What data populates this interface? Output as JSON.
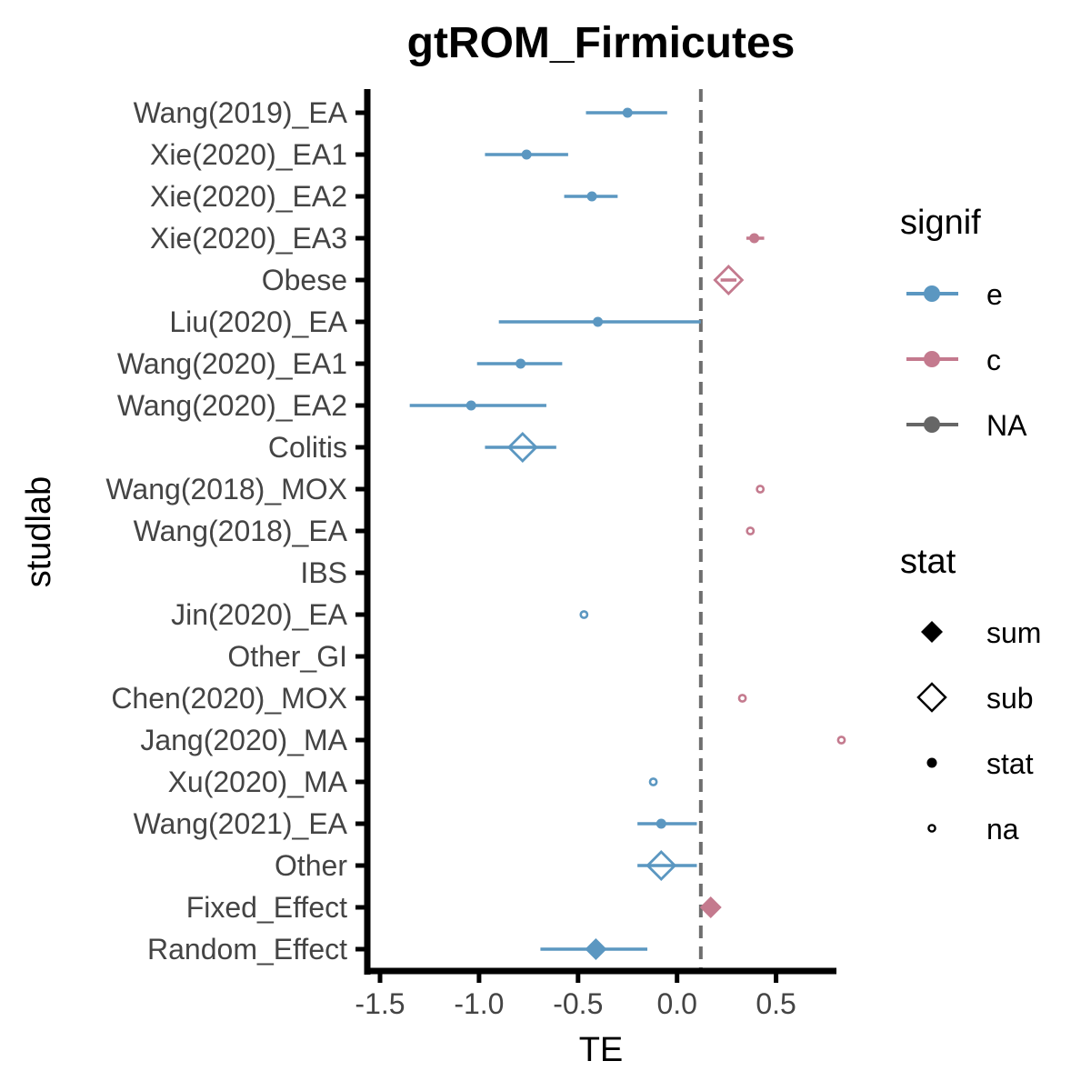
{
  "chart_data": {
    "type": "forest",
    "title": "gtROM_Firmicutes",
    "xlabel": "TE",
    "ylabel": "studlab",
    "xlim": [
      -1.5,
      0.9
    ],
    "xticks": [
      -1.5,
      -1.0,
      -0.5,
      0.0,
      0.5
    ],
    "xtick_labels": [
      "-1.5",
      "-1.0",
      "-0.5",
      "0.0",
      "0.5"
    ],
    "reference_line": 0.12,
    "colors": {
      "e": "#5b97c1",
      "c": "#c47a8e",
      "NA": "#666666"
    },
    "rows": [
      {
        "studlab": "Wang(2019)_EA",
        "TE": -0.25,
        "lower": -0.46,
        "upper": -0.05,
        "signif": "e",
        "stat": "stat"
      },
      {
        "studlab": "Xie(2020)_EA1",
        "TE": -0.76,
        "lower": -0.97,
        "upper": -0.55,
        "signif": "e",
        "stat": "stat"
      },
      {
        "studlab": "Xie(2020)_EA2",
        "TE": -0.43,
        "lower": -0.57,
        "upper": -0.3,
        "signif": "e",
        "stat": "stat"
      },
      {
        "studlab": "Xie(2020)_EA3",
        "TE": 0.39,
        "lower": 0.35,
        "upper": 0.44,
        "signif": "c",
        "stat": "stat"
      },
      {
        "studlab": "Obese",
        "TE": 0.26,
        "lower": 0.22,
        "upper": 0.3,
        "signif": "c",
        "stat": "sub"
      },
      {
        "studlab": "Liu(2020)_EA",
        "TE": -0.4,
        "lower": -0.9,
        "upper": 0.12,
        "signif": "e",
        "stat": "stat"
      },
      {
        "studlab": "Wang(2020)_EA1",
        "TE": -0.79,
        "lower": -1.01,
        "upper": -0.58,
        "signif": "e",
        "stat": "stat"
      },
      {
        "studlab": "Wang(2020)_EA2",
        "TE": -1.04,
        "lower": -1.35,
        "upper": -0.66,
        "signif": "e",
        "stat": "stat"
      },
      {
        "studlab": "Colitis",
        "TE": -0.78,
        "lower": -0.97,
        "upper": -0.61,
        "signif": "e",
        "stat": "sub"
      },
      {
        "studlab": "Wang(2018)_MOX",
        "TE": 0.42,
        "lower": null,
        "upper": null,
        "signif": "c",
        "stat": "na"
      },
      {
        "studlab": "Wang(2018)_EA",
        "TE": 0.37,
        "lower": null,
        "upper": null,
        "signif": "c",
        "stat": "na"
      },
      {
        "studlab": "IBS",
        "TE": null,
        "lower": null,
        "upper": null,
        "signif": "NA",
        "stat": ""
      },
      {
        "studlab": "Jin(2020)_EA",
        "TE": -0.47,
        "lower": null,
        "upper": null,
        "signif": "e",
        "stat": "na"
      },
      {
        "studlab": "Other_GI",
        "TE": null,
        "lower": null,
        "upper": null,
        "signif": "NA",
        "stat": ""
      },
      {
        "studlab": "Chen(2020)_MOX",
        "TE": 0.33,
        "lower": null,
        "upper": null,
        "signif": "c",
        "stat": "na"
      },
      {
        "studlab": "Jang(2020)_MA",
        "TE": 0.83,
        "lower": null,
        "upper": null,
        "signif": "c",
        "stat": "na"
      },
      {
        "studlab": "Xu(2020)_MA",
        "TE": -0.12,
        "lower": null,
        "upper": null,
        "signif": "e",
        "stat": "na"
      },
      {
        "studlab": "Wang(2021)_EA",
        "TE": -0.08,
        "lower": -0.2,
        "upper": 0.1,
        "signif": "e",
        "stat": "stat"
      },
      {
        "studlab": "Other",
        "TE": -0.08,
        "lower": -0.2,
        "upper": 0.1,
        "signif": "e",
        "stat": "sub"
      },
      {
        "studlab": "Fixed_Effect",
        "TE": 0.17,
        "lower": 0.14,
        "upper": 0.2,
        "signif": "c",
        "stat": "sum"
      },
      {
        "studlab": "Random_Effect",
        "TE": -0.41,
        "lower": -0.69,
        "upper": -0.15,
        "signif": "e",
        "stat": "sum"
      }
    ],
    "legend": {
      "placement": "right",
      "signif": {
        "title": "signif",
        "items": [
          {
            "label": "e",
            "color": "#5b97c1"
          },
          {
            "label": "c",
            "color": "#c47a8e"
          },
          {
            "label": "NA",
            "color": "#666666"
          }
        ]
      },
      "stat": {
        "title": "stat",
        "items": [
          {
            "label": "sum",
            "shape": "filled-diamond"
          },
          {
            "label": "sub",
            "shape": "open-diamond"
          },
          {
            "label": "stat",
            "shape": "filled-dot"
          },
          {
            "label": "na",
            "shape": "open-dot"
          }
        ]
      }
    }
  }
}
